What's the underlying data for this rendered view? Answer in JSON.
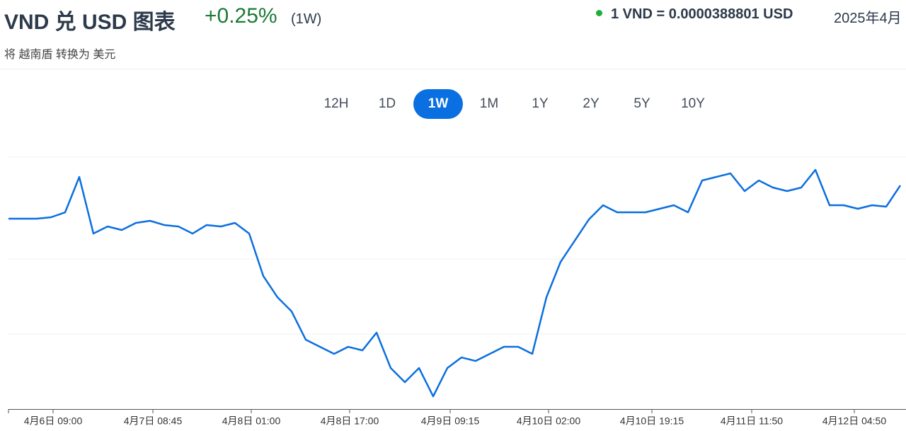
{
  "header": {
    "title": "VND 兑 USD 图表",
    "change": "+0.25%",
    "period": "(1W)",
    "rate": "1 VND = 0.0000388801 USD",
    "date": "2025年4月",
    "subtitle": "将 越南盾 转换为 美元"
  },
  "range_buttons": {
    "options": [
      "12H",
      "1D",
      "1W",
      "1M",
      "1Y",
      "2Y",
      "5Y",
      "10Y"
    ],
    "active": "1W"
  },
  "chart_data": {
    "type": "line",
    "color": "#0b6fde",
    "values": [
      3.87832e-05,
      3.87832e-05,
      3.87832e-05,
      3.87873e-05,
      3.88017e-05,
      3.89047e-05,
      3.87399e-05,
      3.87605e-05,
      3.87502e-05,
      3.87708e-05,
      3.8777e-05,
      3.87647e-05,
      3.87605e-05,
      3.87399e-05,
      3.87647e-05,
      3.87605e-05,
      3.87708e-05,
      3.87399e-05,
      3.86163e-05,
      3.85545e-05,
      3.85133e-05,
      3.84309e-05,
      3.84103e-05,
      3.83897e-05,
      3.84103e-05,
      3.84e-05,
      3.84515e-05,
      3.83485e-05,
      3.83073e-05,
      3.83485e-05,
      3.82661e-05,
      3.83485e-05,
      3.83794e-05,
      3.83691e-05,
      3.83897e-05,
      3.84103e-05,
      3.84103e-05,
      3.83897e-05,
      3.85545e-05,
      3.86575e-05,
      3.87193e-05,
      3.87811e-05,
      3.88223e-05,
      3.88017e-05,
      3.88017e-05,
      3.88017e-05,
      3.8812e-05,
      3.88223e-05,
      3.88017e-05,
      3.88944e-05,
      3.89047e-05,
      3.8915e-05,
      3.88635e-05,
      3.88944e-05,
      3.88738e-05,
      3.88635e-05,
      3.88738e-05,
      3.89253e-05,
      3.88223e-05,
      3.88223e-05,
      3.8812e-05,
      3.88223e-05,
      3.88182e-05,
      3.88801e-05
    ],
    "ylim": [
      3.82291e-05,
      3.89624e-05
    ],
    "xlim": [
      0,
      63.4
    ],
    "xticks": [
      {
        "value": 3.15,
        "label": "4月6日 09:00"
      },
      {
        "value": 10.2,
        "label": "4月7日 08:45"
      },
      {
        "value": 17.15,
        "label": "4月8日 01:00"
      },
      {
        "value": 24.1,
        "label": "4月8日 17:00"
      },
      {
        "value": 31.2,
        "label": "4月9日 09:15"
      },
      {
        "value": 38.15,
        "label": "4月10日 02:00"
      },
      {
        "value": 45.45,
        "label": "4月10日 19:15"
      },
      {
        "value": 52.5,
        "label": "4月11日 11:50"
      },
      {
        "value": 59.75,
        "label": "4月12日 04:50"
      }
    ]
  }
}
